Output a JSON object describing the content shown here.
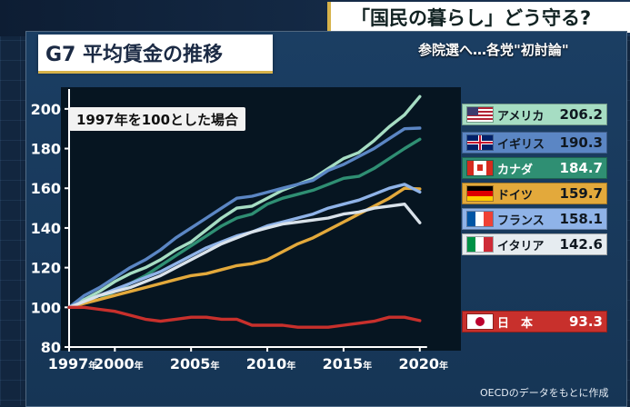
{
  "header": {
    "headline": "「国民の暮らし」どう守る?",
    "subheadline": "参院選へ…各党\"初討論\""
  },
  "chart_title": "G7 平均賃金の推移",
  "note": "1997年を100とした場合",
  "source": "OECDのデータをもとに作成",
  "colors": {
    "panel": "#1b3e63",
    "plot": "#061521",
    "accent": "#d6b24a"
  },
  "chart_data": {
    "type": "line",
    "xlim": [
      1997,
      2021
    ],
    "ylim": [
      80,
      210
    ],
    "x_ticks": [
      1997,
      2000,
      2005,
      2010,
      2015,
      2020
    ],
    "x_tick_labels": [
      "1997年",
      "2000年",
      "2005年",
      "2010年",
      "2015年",
      "2020年"
    ],
    "y_ticks": [
      80,
      100,
      120,
      140,
      160,
      180,
      200
    ],
    "y_tick_labels": [
      "80",
      "100",
      "120",
      "140",
      "160",
      "180",
      "200"
    ],
    "x": [
      1997,
      1998,
      1999,
      2000,
      2001,
      2002,
      2003,
      2004,
      2005,
      2006,
      2007,
      2008,
      2009,
      2010,
      2011,
      2012,
      2013,
      2014,
      2015,
      2016,
      2017,
      2018,
      2019,
      2020
    ],
    "series": [
      {
        "name": "アメリカ",
        "value_label": "206.2",
        "color": "#a6ddc3",
        "flag": "us",
        "values": [
          100,
          104,
          108,
          113,
          117,
          120,
          124,
          129,
          133,
          139,
          145,
          150,
          151,
          155,
          159,
          162,
          165,
          170,
          175,
          178,
          184,
          191,
          197,
          206.2
        ]
      },
      {
        "name": "イギリス",
        "value_label": "190.3",
        "color": "#5b86c4",
        "flag": "uk",
        "values": [
          100,
          106,
          110,
          115,
          120,
          124,
          129,
          135,
          140,
          145,
          150,
          155,
          156,
          158,
          160,
          162,
          164,
          169,
          172,
          176,
          180,
          185,
          190,
          190.3
        ]
      },
      {
        "name": "カナダ",
        "value_label": "184.7",
        "color": "#2f8f73",
        "flag": "ca",
        "values": [
          100,
          102,
          104,
          108,
          112,
          116,
          121,
          126,
          131,
          136,
          141,
          145,
          147,
          152,
          155,
          157,
          159,
          162,
          165,
          166,
          170,
          175,
          180,
          184.7
        ]
      },
      {
        "name": "ドイツ",
        "value_label": "159.7",
        "color": "#e3a93b",
        "flag": "de",
        "values": [
          100,
          102,
          104,
          106,
          108,
          110,
          112,
          114,
          116,
          117,
          119,
          121,
          122,
          124,
          128,
          132,
          135,
          139,
          143,
          147,
          151,
          155,
          160,
          159.7
        ]
      },
      {
        "name": "フランス",
        "value_label": "158.1",
        "color": "#8fb3e8",
        "flag": "fr",
        "values": [
          100,
          103,
          106,
          109,
          112,
          115,
          118,
          122,
          126,
          130,
          133,
          136,
          138,
          141,
          143,
          145,
          147,
          150,
          152,
          154,
          157,
          160,
          162,
          158.1
        ]
      },
      {
        "name": "イタリア",
        "value_label": "142.6",
        "color": "#d9e2ea",
        "flag": "it",
        "values": [
          100,
          103,
          106,
          108,
          110,
          113,
          116,
          120,
          124,
          128,
          132,
          135,
          138,
          140,
          142,
          143,
          144,
          145,
          147,
          148,
          150,
          151,
          152,
          142.6
        ]
      },
      {
        "name": "日　本",
        "value_label": "93.3",
        "color": "#c8302c",
        "flag": "jp",
        "values": [
          100,
          100,
          99,
          98,
          96,
          94,
          93,
          94,
          95,
          95,
          94,
          94,
          91,
          91,
          91,
          90,
          90,
          90,
          91,
          92,
          93,
          95,
          95,
          93.3
        ]
      }
    ]
  }
}
